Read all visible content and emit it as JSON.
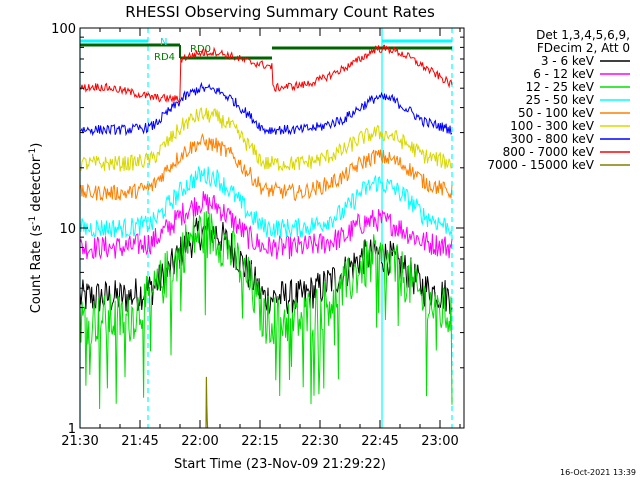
{
  "chart_data": {
    "type": "line",
    "title": "RHESSI Observing Summary Count Rates",
    "xlabel": "Start Time (23-Nov-09 21:29:22)",
    "ylabel_main": "Count Rate (s",
    "ylabel_sup1": "-1",
    "ylabel_mid": " detector",
    "ylabel_sup2": "-1",
    "ylabel_end": ")",
    "footer": "16-Oct-2021 13:39",
    "x_unit": "minutes since 21:30 UT",
    "xlim": [
      0,
      96
    ],
    "ylim": [
      1,
      100
    ],
    "y_scale": "log",
    "x_ticks": [
      {
        "v": 0,
        "label": "21:30"
      },
      {
        "v": 15,
        "label": "21:45"
      },
      {
        "v": 30,
        "label": "22:00"
      },
      {
        "v": 45,
        "label": "22:15"
      },
      {
        "v": 60,
        "label": "22:30"
      },
      {
        "v": 75,
        "label": "22:45"
      },
      {
        "v": 90,
        "label": "23:00"
      }
    ],
    "y_ticks": [
      {
        "v": 1,
        "label": "1"
      },
      {
        "v": 10,
        "label": "10"
      },
      {
        "v": 100,
        "label": "100"
      }
    ],
    "legend_header": [
      "Det 1,3,4,5,6,9,",
      "FDecim 2, Att 0"
    ],
    "legend_position": "right",
    "series": [
      {
        "name": "3 - 6 keV",
        "color": "#000000",
        "x": [
          0,
          12,
          18,
          22,
          26,
          30,
          34,
          38,
          42,
          46,
          55,
          60,
          66,
          70,
          74,
          78,
          82,
          86,
          93
        ],
        "y": [
          4.5,
          4.5,
          5,
          6,
          8,
          9.5,
          9.5,
          8,
          6,
          4.5,
          4.5,
          5,
          6,
          7,
          7.5,
          7,
          6,
          5,
          4.5
        ]
      },
      {
        "name": "6 - 12 keV",
        "color": "#ff00ff",
        "x": [
          0,
          12,
          18,
          22,
          26,
          30,
          34,
          38,
          42,
          46,
          55,
          60,
          66,
          70,
          74,
          78,
          82,
          86,
          93
        ],
        "y": [
          8,
          8,
          8.5,
          10,
          12,
          13.5,
          13,
          11,
          9,
          8,
          8,
          8.3,
          9,
          10.5,
          11,
          10.5,
          9.5,
          8.5,
          8
        ]
      },
      {
        "name": "12 - 25 keV",
        "color": "#00e000",
        "x": [
          0,
          12,
          18,
          22,
          26,
          30,
          34,
          38,
          42,
          46,
          55,
          60,
          66,
          70,
          74,
          78,
          82,
          86,
          93
        ],
        "y": [
          3.5,
          3.5,
          4.5,
          6,
          8,
          9.5,
          9.2,
          7.5,
          5.5,
          3.5,
          3.5,
          4,
          5,
          6.3,
          7,
          6.5,
          5.5,
          4.3,
          3.6
        ]
      },
      {
        "name": "25 - 50 keV",
        "color": "#00ffff",
        "x": [
          0,
          12,
          18,
          22,
          26,
          30,
          34,
          38,
          42,
          46,
          55,
          60,
          66,
          70,
          74,
          78,
          82,
          86,
          93
        ],
        "y": [
          10,
          10,
          10.5,
          13,
          16,
          18.5,
          18,
          15,
          12,
          10,
          10,
          10.5,
          12,
          15,
          17,
          16,
          14,
          11.5,
          10
        ]
      },
      {
        "name": "50 - 100 keV",
        "color": "#ff8000",
        "x": [
          0,
          12,
          18,
          22,
          26,
          30,
          34,
          38,
          42,
          46,
          55,
          60,
          66,
          70,
          74,
          78,
          82,
          86,
          93
        ],
        "y": [
          15,
          15,
          16,
          20,
          24,
          27,
          26,
          23,
          19,
          15.5,
          15,
          16,
          18,
          21,
          23,
          22,
          20,
          17,
          15
        ]
      },
      {
        "name": "100 - 300 keV",
        "color": "#d8d800",
        "x": [
          0,
          12,
          18,
          22,
          26,
          30,
          34,
          38,
          42,
          46,
          55,
          60,
          66,
          70,
          74,
          78,
          82,
          86,
          93
        ],
        "y": [
          21,
          21,
          22,
          27,
          33,
          37,
          36,
          32,
          26,
          21,
          21,
          22,
          24.5,
          28,
          30,
          29,
          26,
          23,
          21
        ]
      },
      {
        "name": "300 - 800 keV",
        "color": "#0000ff",
        "x": [
          0,
          12,
          18,
          22,
          26,
          30,
          34,
          38,
          42,
          46,
          55,
          60,
          66,
          70,
          74,
          78,
          82,
          86,
          93
        ],
        "y": [
          31,
          31,
          32,
          38,
          45,
          50,
          49,
          44,
          37,
          31,
          31,
          32,
          35,
          40,
          45,
          44,
          39,
          34,
          31
        ]
      },
      {
        "name": "800 - 7000 keV",
        "color": "#ff0000",
        "x": [
          0,
          4,
          8,
          12,
          18,
          24.99,
          25,
          30,
          34,
          38,
          42,
          47.99,
          48,
          52,
          56,
          60,
          64,
          68,
          72,
          74,
          78,
          82,
          86,
          93
        ],
        "y": [
          50,
          51,
          50,
          48,
          45,
          44,
          70,
          75,
          76,
          72,
          68,
          64,
          50,
          51,
          52,
          55,
          60,
          66,
          74,
          79,
          78,
          72,
          64,
          52
        ]
      },
      {
        "name": "7000 - 15000 keV",
        "color": "#808000",
        "x": [
          31.5,
          31.6,
          31.7,
          31.8,
          31.9
        ],
        "y": [
          1,
          1.8,
          1.3,
          1.1,
          1
        ]
      }
    ],
    "annotations": [
      {
        "text": "N",
        "color": "#00e0e0"
      },
      {
        "text": "RD4",
        "color": "#008000"
      },
      {
        "text": "RD0",
        "color": "#008000"
      }
    ],
    "flag_segments": [
      {
        "flag": "N",
        "color": "#00ffff",
        "x": [
          0,
          17
        ]
      },
      {
        "flag": "N",
        "color": "#00ffff",
        "x": [
          75.5,
          93
        ]
      },
      {
        "flag": "RD4",
        "color": "#006400",
        "x": [
          0,
          25
        ]
      },
      {
        "flag": "RD0",
        "color": "#006400",
        "x": [
          25,
          48
        ]
      },
      {
        "flag": "RD0",
        "color": "#006400",
        "x": [
          48,
          93
        ]
      }
    ],
    "vlines": [
      {
        "x": 17,
        "style": "dashed",
        "color": "#00ffff"
      },
      {
        "x": 75.5,
        "style": "solid",
        "color": "#00ffff"
      },
      {
        "x": 93,
        "style": "dashed",
        "color": "#00ffff"
      }
    ]
  }
}
